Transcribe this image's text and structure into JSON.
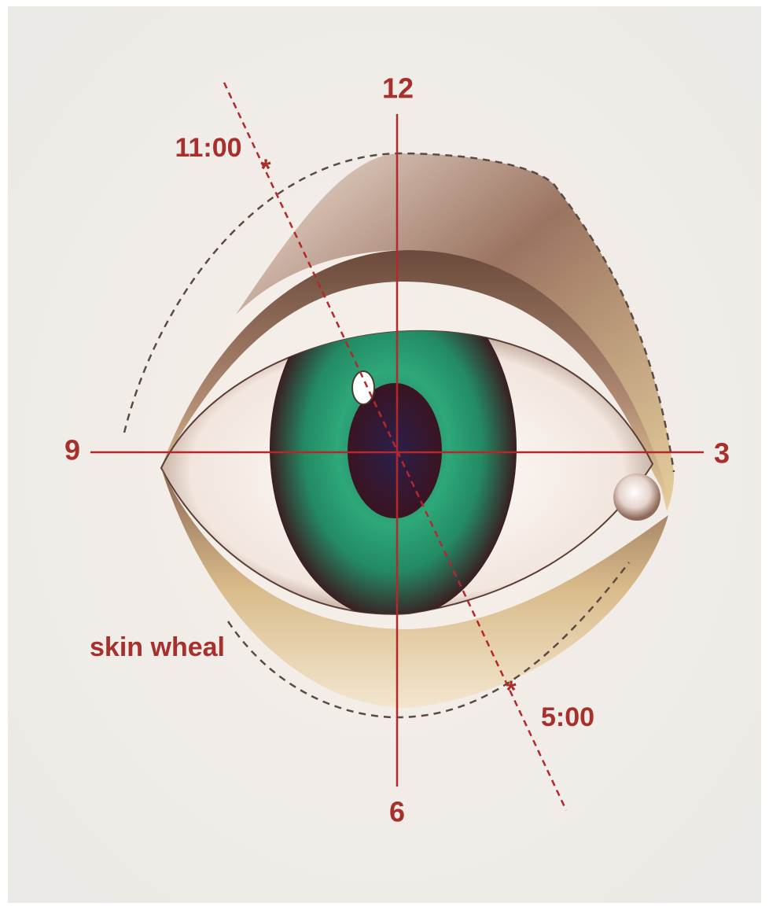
{
  "labels": {
    "top": "12",
    "right": "3",
    "bottom": "6",
    "left": "9",
    "upper_injection": "11:00",
    "lower_injection": "5:00",
    "skin_wheal": "skin wheal"
  }
}
